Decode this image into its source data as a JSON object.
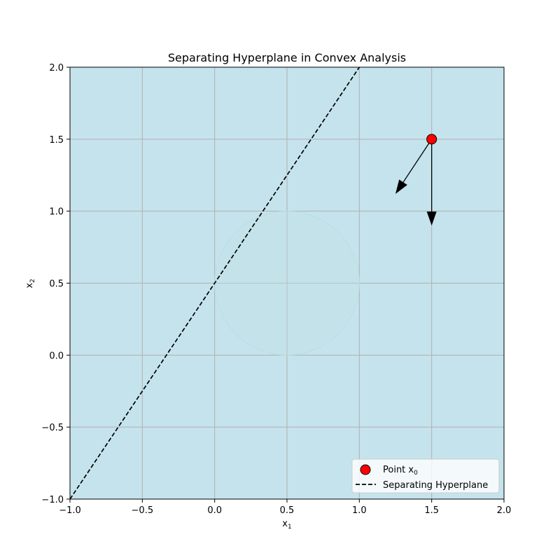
{
  "chart_data": {
    "type": "line",
    "title": "Separating Hyperplane in Convex Analysis",
    "xlabel": "x",
    "xlabel_sub": "1",
    "ylabel": "x",
    "ylabel_sub": "2",
    "xlim": [
      -1.0,
      2.0
    ],
    "ylim": [
      -1.0,
      2.0
    ],
    "xticks": [
      -1.0,
      -0.5,
      0.0,
      0.5,
      1.0,
      1.5,
      2.0
    ],
    "yticks": [
      -1.0,
      -0.5,
      0.0,
      0.5,
      1.0,
      1.5,
      2.0
    ],
    "grid": true,
    "background_color": "#c5e3ec",
    "convex_set": {
      "shape": "circle",
      "center": [
        0.5,
        0.5
      ],
      "radius": 0.5,
      "color": "#bfe0e8"
    },
    "point": {
      "label": "Point x",
      "label_sub": "0",
      "x": 1.5,
      "y": 1.5,
      "color": "#ff0000"
    },
    "hyperplane": {
      "label": "Separating Hyperplane",
      "x": [
        -1.0,
        1.0
      ],
      "y": [
        -1.0,
        2.0
      ],
      "style": "dashed",
      "color": "#000000"
    },
    "arrows": [
      {
        "x": 1.5,
        "y": 1.5,
        "dx": -0.25,
        "dy": -0.38
      },
      {
        "x": 1.5,
        "y": 1.5,
        "dx": 0.0,
        "dy": -0.6
      }
    ],
    "legend_placement": "lower-right"
  }
}
